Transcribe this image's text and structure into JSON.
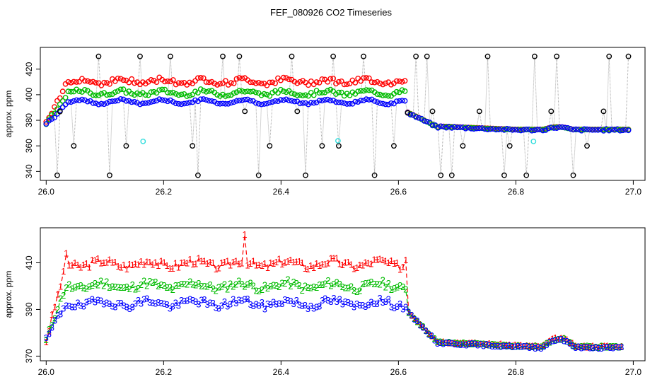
{
  "page": {
    "title": "FEF_080926  CO2 Timeseries"
  },
  "chart_data": [
    {
      "id": "top",
      "type": "scatter",
      "ylabel": "approx. ppm",
      "xlim": [
        25.99,
        27.02
      ],
      "ylim": [
        333,
        437
      ],
      "xticks": [
        26.0,
        26.2,
        26.4,
        26.6,
        26.8,
        27.0
      ],
      "xtick_labels": [
        "26.0",
        "26.2",
        "26.4",
        "26.6",
        "26.8",
        "27.0"
      ],
      "yticks": [
        340,
        360,
        380,
        400,
        420
      ],
      "ytick_labels": [
        "340",
        "360",
        "380",
        "400",
        "420"
      ],
      "colors": {
        "ref": "#000000",
        "s1": "#ff0000",
        "s2": "#00bb00",
        "s3": "#0000ff",
        "cyan": "#33dddd",
        "line": "#aaaaaa"
      },
      "high_spikes_x": [
        26.09,
        26.16,
        26.21,
        26.3,
        26.33,
        26.42,
        26.49,
        26.54,
        26.63,
        26.65,
        26.75,
        26.83,
        26.87,
        26.96,
        26.99
      ],
      "low_spikes_x": [
        26.02,
        26.11,
        26.16,
        26.26,
        26.33,
        26.36,
        26.44,
        26.56,
        26.67,
        26.69,
        26.78,
        26.82,
        26.9,
        26.99
      ],
      "mid_low_x": [
        26.045,
        26.135,
        26.16,
        26.25,
        26.33,
        26.38,
        26.47,
        26.5,
        26.59,
        26.71,
        26.79,
        26.82,
        26.92,
        26.99
      ],
      "mid_high_x": [
        26.34,
        26.43,
        26.5,
        26.66,
        26.74,
        26.83,
        26.86,
        26.95,
        26.99
      ],
      "cyan_points": [
        [
          26.165,
          363.5
        ],
        [
          26.497,
          364
        ],
        [
          26.83,
          363.5
        ]
      ]
    },
    {
      "id": "bottom",
      "type": "line",
      "ylabel": "approx. ppm",
      "xlim": [
        25.99,
        27.02
      ],
      "ylim": [
        368,
        425
      ],
      "xticks": [
        26.0,
        26.2,
        26.4,
        26.6,
        26.8,
        27.0
      ],
      "xtick_labels": [
        "26.0",
        "26.2",
        "26.4",
        "26.6",
        "26.8",
        "27.0"
      ],
      "yticks": [
        370,
        390,
        410
      ],
      "ytick_labels": [
        "370",
        "390",
        "410"
      ],
      "series": [
        {
          "name": "1",
          "color": "#ff0000"
        },
        {
          "name": "2",
          "color": "#00bb00"
        },
        {
          "name": "3",
          "color": "#0000ff"
        }
      ],
      "spikes": [
        {
          "x": 26.033,
          "series": "1",
          "value": 414
        },
        {
          "x": 26.339,
          "series": "1",
          "value": 422
        },
        {
          "x": 26.612,
          "series": "1",
          "value": 411
        }
      ]
    }
  ]
}
